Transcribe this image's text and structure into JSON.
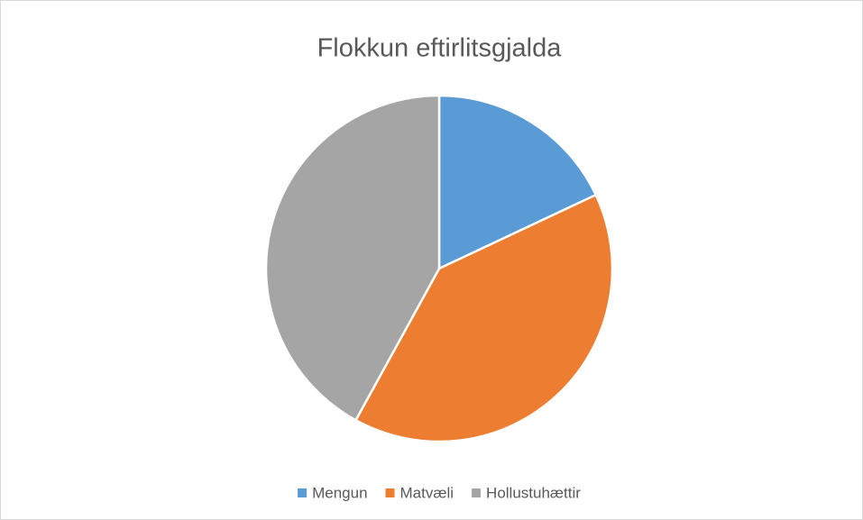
{
  "chart_data": {
    "type": "pie",
    "title": "Flokkun eftirlitsgjalda",
    "categories": [
      "Mengun",
      "Matvæli",
      "Hollustuhættir"
    ],
    "values": [
      18,
      40,
      42
    ],
    "colors": [
      "#5b9bd5",
      "#ed7d31",
      "#a5a5a5"
    ],
    "legend": "bottom"
  }
}
